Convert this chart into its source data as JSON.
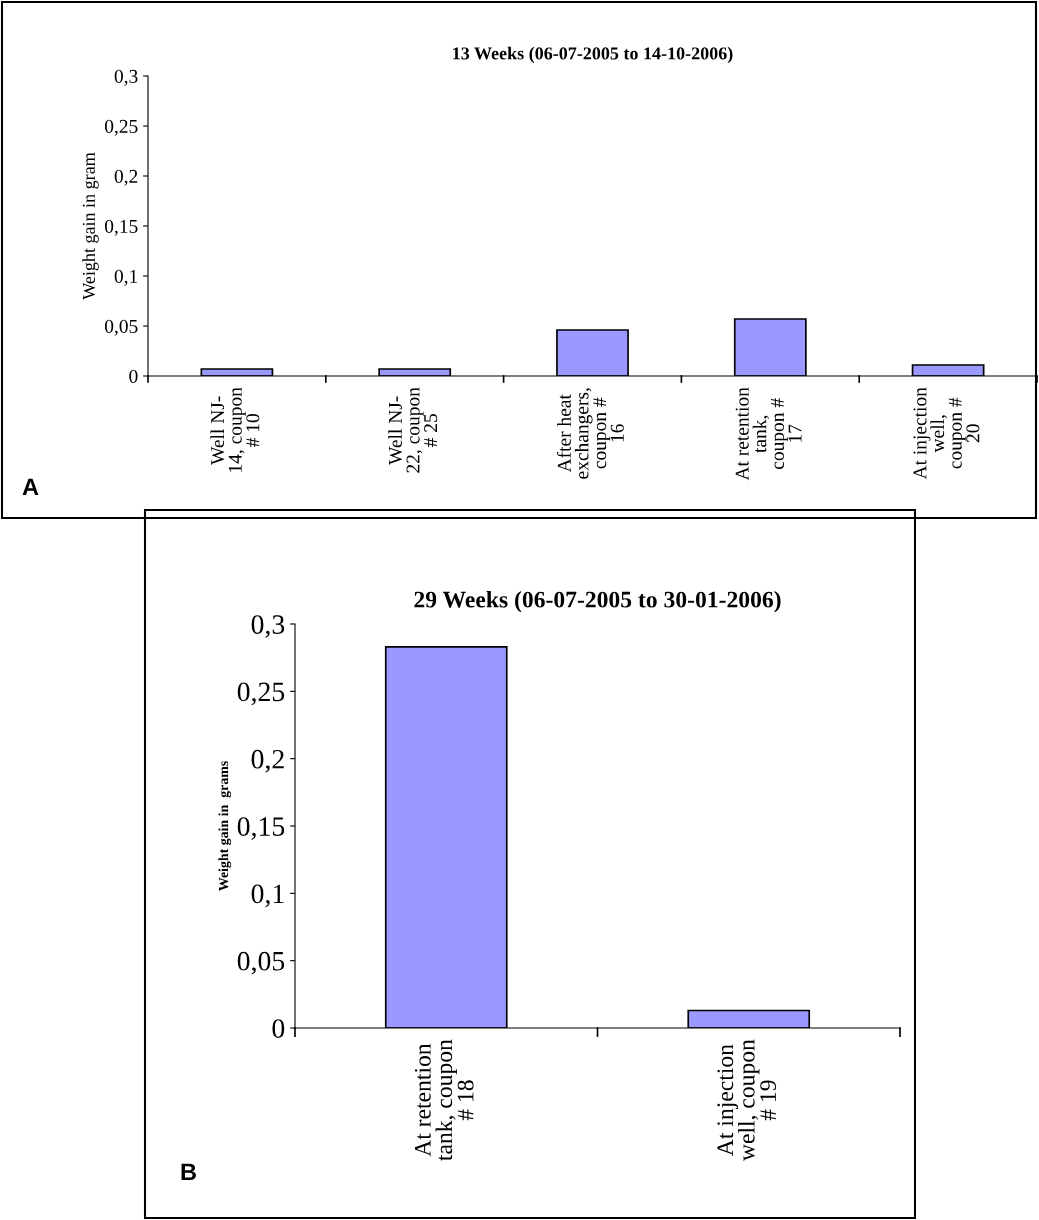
{
  "chart_data": [
    {
      "type": "bar",
      "title": "13 Weeks (06-07-2005 to 14-10-2006)",
      "ylabel": "Weight gain in gram",
      "categories": [
        "Well NJ-\n14, coupon\n# 10",
        "Well NJ-\n22, coupon\n# 25",
        "After heat\nexchangers,\ncoupon #\n16",
        "At retention\ntank,\ncoupon #\n17",
        "At injection\nwell,\ncoupon #\n20"
      ],
      "values": [
        0.007,
        0.007,
        0.046,
        0.057,
        0.011
      ],
      "color": "#9999ff",
      "ylim": [
        0,
        0.3
      ],
      "yticks": [
        {
          "value": 0,
          "label": "0"
        },
        {
          "value": 0.05,
          "label": "0,05"
        },
        {
          "value": 0.1,
          "label": "0,1"
        },
        {
          "value": 0.15,
          "label": "0,15"
        },
        {
          "value": 0.2,
          "label": "0,2"
        },
        {
          "value": 0.25,
          "label": "0,25"
        },
        {
          "value": 0.3,
          "label": "0,3"
        }
      ],
      "grid": false,
      "legend": false,
      "annotations": [
        "A"
      ]
    },
    {
      "type": "bar",
      "title": "29 Weeks (06-07-2005 to 30-01-2006)",
      "ylabel": "Weight gain in  grams",
      "categories": [
        "At retention\ntank, coupon\n# 18",
        "At injection\nwell, coupon\n# 19"
      ],
      "values": [
        0.283,
        0.013
      ],
      "color": "#9999ff",
      "ylim": [
        0,
        0.3
      ],
      "yticks": [
        {
          "value": 0,
          "label": "0"
        },
        {
          "value": 0.05,
          "label": "0,05"
        },
        {
          "value": 0.1,
          "label": "0,1"
        },
        {
          "value": 0.15,
          "label": "0,15"
        },
        {
          "value": 0.2,
          "label": "0,2"
        },
        {
          "value": 0.25,
          "label": "0,25"
        },
        {
          "value": 0.3,
          "label": "0,3"
        }
      ],
      "grid": false,
      "legend": false,
      "annotations": [
        "B"
      ]
    }
  ]
}
